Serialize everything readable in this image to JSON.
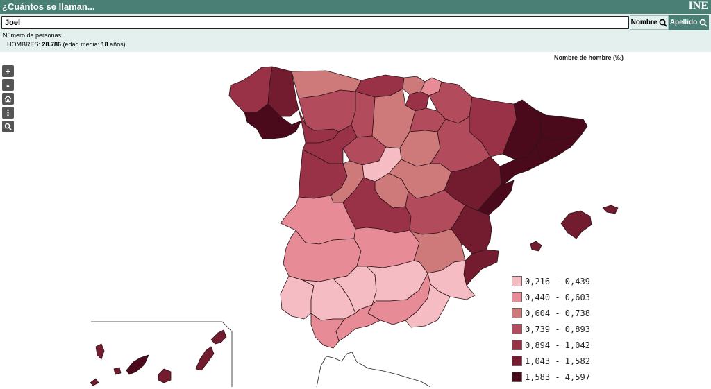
{
  "header": {
    "title": "¿Cuántos se llaman...",
    "logo": "INE"
  },
  "search": {
    "value": "Joel",
    "btn_nombre": "Nombre",
    "btn_apellido": "Apellido"
  },
  "info": {
    "line1": "Número de personas:",
    "hombres_label": "HOMBRES: ",
    "hombres_value": "28.786",
    "edad_label": " (edad media: ",
    "edad_value": "18",
    "edad_suffix": " años)"
  },
  "map": {
    "legend_title": "Nombre de hombre (‰)",
    "classes": [
      {
        "label": "0,216 - 0,439",
        "color": "#f5bcc3"
      },
      {
        "label": "0,440 - 0,603",
        "color": "#e78c97"
      },
      {
        "label": "0,604 - 0,738",
        "color": "#cf7a7a"
      },
      {
        "label": "0,739 - 0,893",
        "color": "#b24b5b"
      },
      {
        "label": "0,894 - 1,042",
        "color": "#9a3247"
      },
      {
        "label": "1,043 - 1,582",
        "color": "#731c30"
      },
      {
        "label": "1,583 - 4,597",
        "color": "#4a0a1c"
      }
    ]
  },
  "controls": {
    "zoom_in": "+",
    "zoom_out": "-",
    "home_icon": "home-icon",
    "menu_icon": "more-vertical-icon",
    "search_icon": "search-icon"
  }
}
